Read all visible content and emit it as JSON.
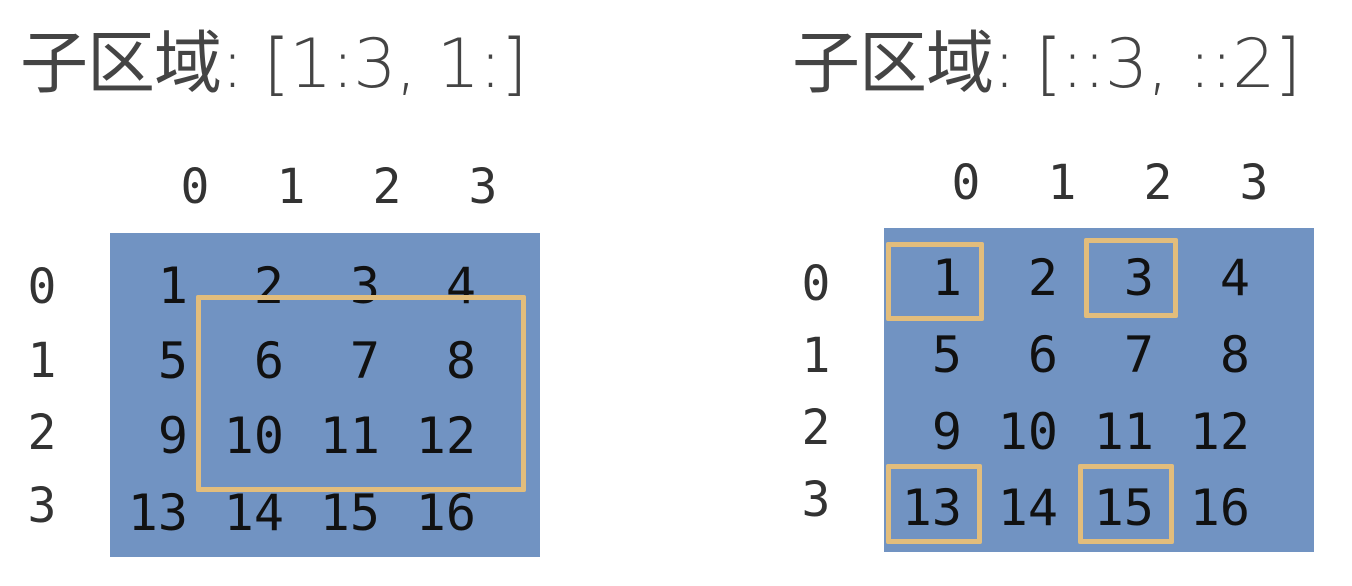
{
  "panels": [
    {
      "title": "子区域: [1:3, 1:]",
      "col_headers": [
        "0",
        "1",
        "2",
        "3"
      ],
      "row_headers": [
        "0",
        "1",
        "2",
        "3"
      ],
      "cells": [
        [
          "1",
          "2",
          "3",
          "4"
        ],
        [
          "5",
          "6",
          "7",
          "8"
        ],
        [
          "9",
          "10",
          "11",
          "12"
        ],
        [
          "13",
          "14",
          "15",
          "16"
        ]
      ]
    },
    {
      "title": "子区域: [::3, ::2]",
      "col_headers": [
        "0",
        "1",
        "2",
        "3"
      ],
      "row_headers": [
        "0",
        "1",
        "2",
        "3"
      ],
      "cells": [
        [
          "1",
          "2",
          "3",
          "4"
        ],
        [
          "5",
          "6",
          "7",
          "8"
        ],
        [
          "9",
          "10",
          "11",
          "12"
        ],
        [
          "13",
          "14",
          "15",
          "16"
        ]
      ]
    }
  ],
  "colors": {
    "grid_fill": "#7193c2",
    "highlight": "#e2bd7c"
  }
}
